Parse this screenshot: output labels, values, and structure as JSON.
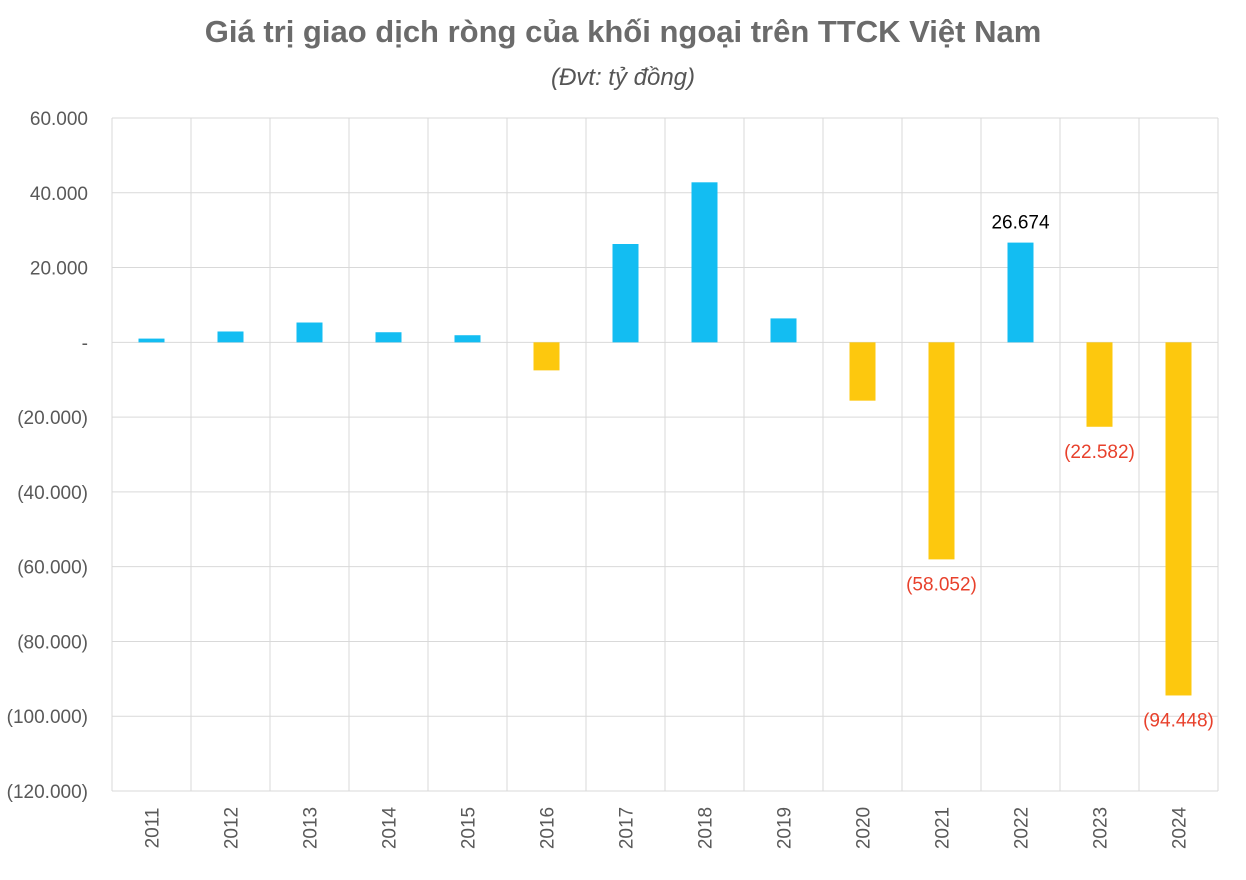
{
  "chart_data": {
    "type": "bar",
    "title": "Giá trị giao dịch ròng của khối ngoại trên TTCK Việt Nam",
    "subtitle": "(Đvt: tỷ đồng)",
    "categories": [
      "2011",
      "2012",
      "2013",
      "2014",
      "2015",
      "2016",
      "2017",
      "2018",
      "2019",
      "2020",
      "2021",
      "2022",
      "2023",
      "2024"
    ],
    "values": [
      1000,
      2900,
      5300,
      2700,
      1900,
      -7500,
      26300,
      42800,
      6400,
      -15600,
      -58052,
      26674,
      -22582,
      -94448
    ],
    "ylim": [
      -120000,
      60000
    ],
    "yticks": [
      60000,
      40000,
      20000,
      0,
      -20000,
      -40000,
      -60000,
      -80000,
      -100000,
      -120000
    ],
    "ytick_labels": [
      "60.000",
      "40.000",
      "20.000",
      "-",
      "(20.000)",
      "(40.000)",
      "(60.000)",
      "(80.000)",
      "(100.000)",
      "(120.000)"
    ],
    "data_labels": [
      {
        "category": "2021",
        "text": "(58.052)",
        "color": "#e8412c"
      },
      {
        "category": "2022",
        "text": "26.674",
        "color": "#000000"
      },
      {
        "category": "2023",
        "text": "(22.582)",
        "color": "#e8412c"
      },
      {
        "category": "2024",
        "text": "(94.448)",
        "color": "#e8412c"
      }
    ],
    "colors": {
      "positive": "#13bdf2",
      "negative": "#fdc80e",
      "grid": "#d9d9d9"
    },
    "grid": true,
    "legend": "none"
  }
}
